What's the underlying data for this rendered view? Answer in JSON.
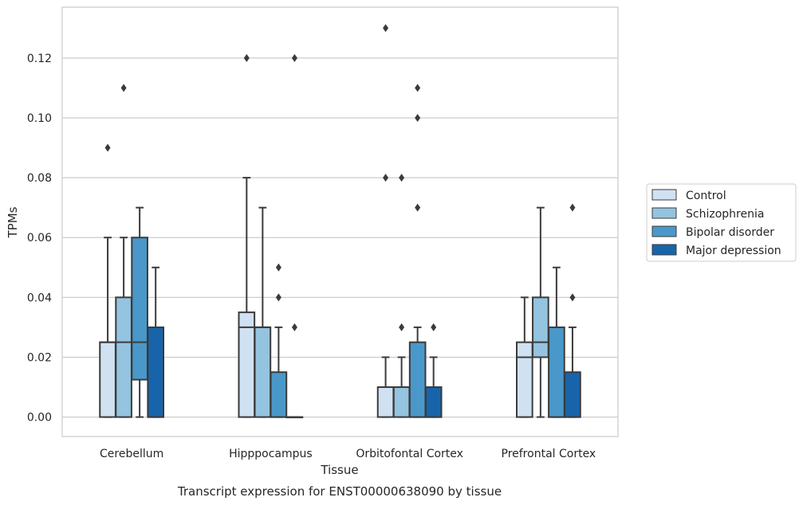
{
  "caption": "Transcript expression for ENST00000638090 by tissue",
  "chart_data": {
    "type": "box",
    "xlabel": "Tissue",
    "ylabel": "TPMs",
    "ylim": [
      -0.0065,
      0.137
    ],
    "yticks": [
      0.0,
      0.02,
      0.04,
      0.06,
      0.08,
      0.1,
      0.12
    ],
    "ytick_labels": [
      "0.00",
      "0.02",
      "0.04",
      "0.06",
      "0.08",
      "0.10",
      "0.12"
    ],
    "grid": "horizontal",
    "legend_position": "right",
    "categories": [
      "Cerebellum",
      "Hipppocampus",
      "Orbitofontal Cortex",
      "Prefrontal Cortex"
    ],
    "series": [
      {
        "name": "Control",
        "color": "#d0e1f2",
        "boxes": [
          {
            "whisker_low": 0.0,
            "q1": 0.0,
            "median": 0.025,
            "q3": 0.025,
            "whisker_high": 0.06,
            "outliers": [
              0.09
            ]
          },
          {
            "whisker_low": 0.0,
            "q1": 0.0,
            "median": 0.03,
            "q3": 0.035,
            "whisker_high": 0.08,
            "outliers": [
              0.12
            ]
          },
          {
            "whisker_low": 0.0,
            "q1": 0.0,
            "median": 0.01,
            "q3": 0.01,
            "whisker_high": 0.02,
            "outliers": [
              0.08,
              0.13
            ]
          },
          {
            "whisker_low": 0.0,
            "q1": 0.0,
            "median": 0.02,
            "q3": 0.025,
            "whisker_high": 0.04,
            "outliers": []
          }
        ]
      },
      {
        "name": "Schizophrenia",
        "color": "#94c4df",
        "boxes": [
          {
            "whisker_low": 0.0,
            "q1": 0.0,
            "median": 0.025,
            "q3": 0.04,
            "whisker_high": 0.06,
            "outliers": [
              0.11
            ]
          },
          {
            "whisker_low": 0.0,
            "q1": 0.0,
            "median": 0.03,
            "q3": 0.03,
            "whisker_high": 0.07,
            "outliers": []
          },
          {
            "whisker_low": 0.0,
            "q1": 0.0,
            "median": 0.01,
            "q3": 0.01,
            "whisker_high": 0.02,
            "outliers": [
              0.03,
              0.08
            ]
          },
          {
            "whisker_low": 0.0,
            "q1": 0.02,
            "median": 0.025,
            "q3": 0.04,
            "whisker_high": 0.07,
            "outliers": []
          }
        ]
      },
      {
        "name": "Bipolar disorder",
        "color": "#4a98c9",
        "boxes": [
          {
            "whisker_low": 0.0,
            "q1": 0.0125,
            "median": 0.025,
            "q3": 0.06,
            "whisker_high": 0.07,
            "outliers": []
          },
          {
            "whisker_low": 0.0,
            "q1": 0.0,
            "median": 0.0,
            "q3": 0.015,
            "whisker_high": 0.03,
            "outliers": [
              0.04,
              0.05
            ]
          },
          {
            "whisker_low": 0.0,
            "q1": 0.0,
            "median": 0.0,
            "q3": 0.025,
            "whisker_high": 0.03,
            "outliers": [
              0.07,
              0.1,
              0.11
            ]
          },
          {
            "whisker_low": 0.0,
            "q1": 0.0,
            "median": 0.0,
            "q3": 0.03,
            "whisker_high": 0.05,
            "outliers": []
          }
        ]
      },
      {
        "name": "Major depression",
        "color": "#1764ab",
        "boxes": [
          {
            "whisker_low": 0.0,
            "q1": 0.0,
            "median": 0.0,
            "q3": 0.03,
            "whisker_high": 0.05,
            "outliers": []
          },
          {
            "whisker_low": 0.0,
            "q1": 0.0,
            "median": 0.0,
            "q3": 0.0,
            "whisker_high": 0.0,
            "outliers": [
              0.03,
              0.12
            ]
          },
          {
            "whisker_low": 0.0,
            "q1": 0.0,
            "median": 0.0,
            "q3": 0.01,
            "whisker_high": 0.02,
            "outliers": [
              0.03
            ]
          },
          {
            "whisker_low": 0.0,
            "q1": 0.0,
            "median": 0.0,
            "q3": 0.015,
            "whisker_high": 0.03,
            "outliers": [
              0.04,
              0.07
            ]
          }
        ]
      }
    ]
  }
}
